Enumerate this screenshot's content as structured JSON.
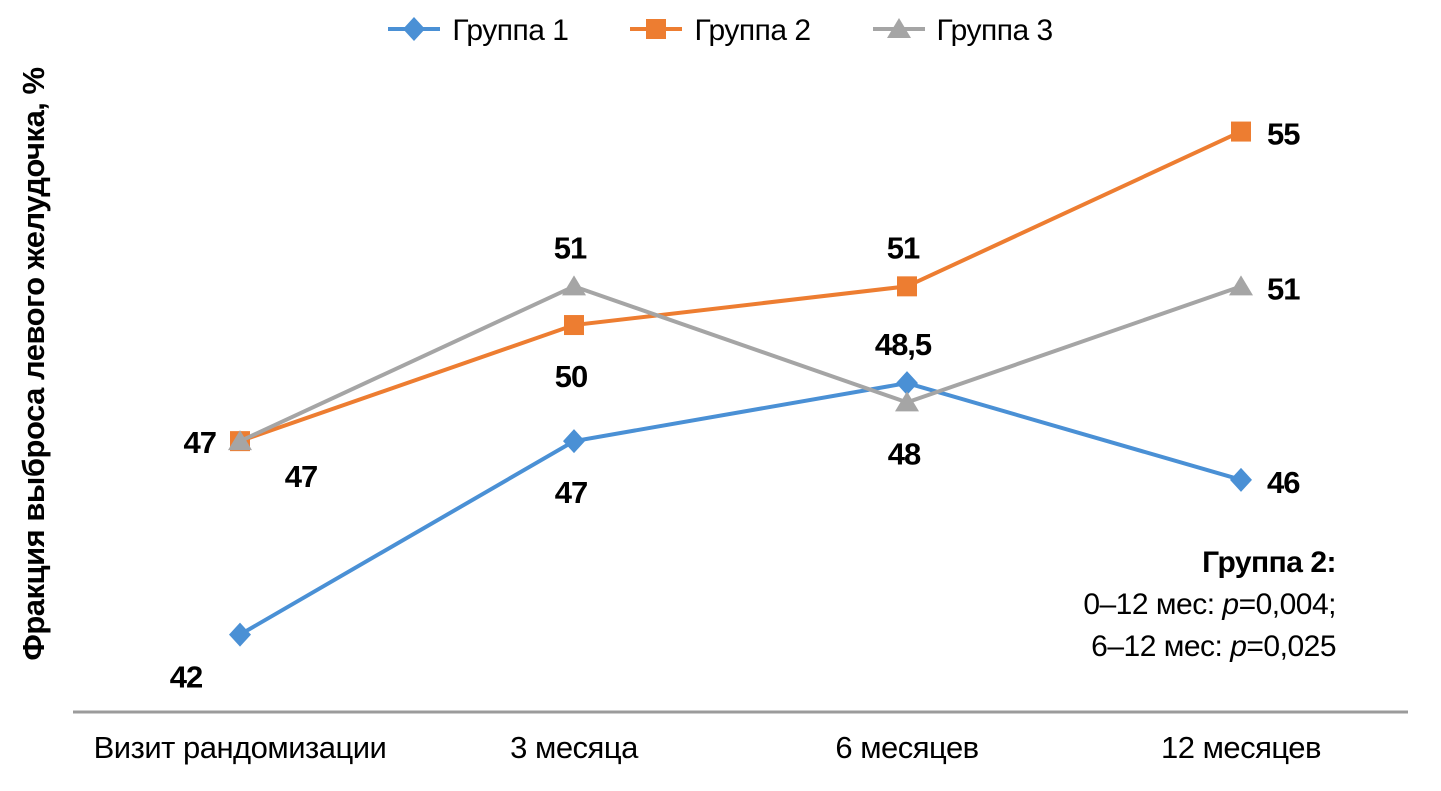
{
  "chart_data": {
    "type": "line",
    "title": "",
    "xlabel": "",
    "ylabel": "Фракция выброса левого желудочка, %",
    "categories": [
      "Визит рандомизации",
      "3 месяца",
      "6 месяцев",
      "12 месяцев"
    ],
    "series": [
      {
        "name": "Группа 1",
        "marker": "diamond",
        "color": "#4A90D5",
        "values": [
          42,
          47,
          48.5,
          46
        ],
        "labels": [
          "42",
          "47",
          "48,5",
          "46"
        ],
        "label_placements": [
          "below-left",
          "below",
          "above",
          "right"
        ]
      },
      {
        "name": "Группа 2",
        "marker": "square",
        "color": "#ED7D31",
        "values": [
          47,
          50,
          51,
          55
        ],
        "labels": [
          "47",
          "50",
          "51",
          "55"
        ],
        "label_placements": [
          "left",
          "below",
          "above",
          "right"
        ]
      },
      {
        "name": "Группа 3",
        "marker": "triangle",
        "color": "#A5A5A5",
        "values": [
          47,
          51,
          48,
          51
        ],
        "labels": [
          "47",
          "51",
          "48",
          "51"
        ],
        "label_placements": [
          "below-right",
          "above",
          "below",
          "right"
        ]
      }
    ],
    "ylim": [
      40,
      58.4
    ],
    "grid": false,
    "legend_position": "top",
    "axis_line_color": "#9B9B9B",
    "text_color": "#000000",
    "annotation": {
      "title": "Группа 2:",
      "lines": [
        {
          "prefix": "0–12 мес: ",
          "italic": "p",
          "suffix": "=0,004;"
        },
        {
          "prefix": "6–12 мес: ",
          "italic": "p",
          "suffix": "=0,025"
        }
      ]
    }
  }
}
